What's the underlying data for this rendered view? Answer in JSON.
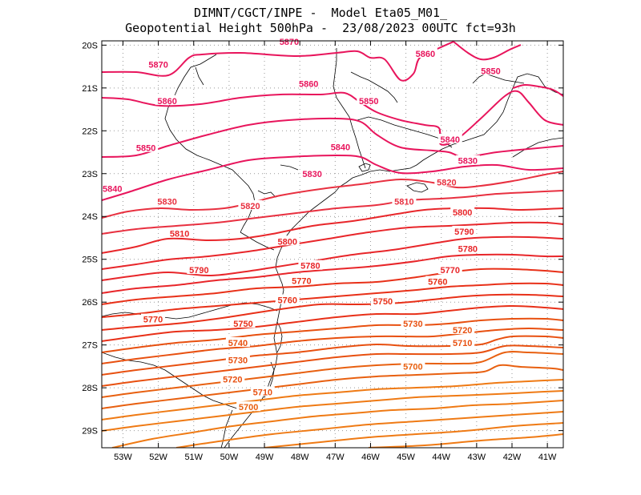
{
  "header": {
    "line1": "DIMNT/CGCT/INPE -  Model Eta05_M01_",
    "line2": "Geopotential Height 500hPa -  23/08/2023 00UTC fct=93h"
  },
  "map": {
    "lon_range": [
      -53.6,
      -40.55
    ],
    "lat_range": [
      -29.4,
      -19.9
    ],
    "lon_ticks": [
      -53,
      -52,
      -51,
      -50,
      -49,
      -48,
      -47,
      -46,
      -45,
      -44,
      -43,
      -42,
      -41
    ],
    "lon_tick_labels": [
      "53W",
      "52W",
      "51W",
      "50W",
      "49W",
      "48W",
      "47W",
      "46W",
      "45W",
      "44W",
      "43W",
      "42W",
      "41W"
    ],
    "lat_ticks": [
      -20,
      -21,
      -22,
      -23,
      -24,
      -25,
      -26,
      -27,
      -28,
      -29
    ],
    "lat_tick_labels": [
      "20S",
      "21S",
      "22S",
      "23S",
      "24S",
      "25S",
      "26S",
      "27S",
      "28S",
      "29S"
    ],
    "gridlines": true
  },
  "contour_labels": [
    {
      "text": "5870",
      "lon": -52.0,
      "lat": -20.45,
      "color": "#e8155c"
    },
    {
      "text": "5870",
      "lon": -48.3,
      "lat": -19.92,
      "color": "#e8155c"
    },
    {
      "text": "5860",
      "lon": -51.75,
      "lat": -21.3,
      "color": "#e8155c"
    },
    {
      "text": "5860",
      "lon": -47.75,
      "lat": -20.9,
      "color": "#e8155c"
    },
    {
      "text": "5860",
      "lon": -44.45,
      "lat": -20.2,
      "color": "#e8155c"
    },
    {
      "text": "5850",
      "lon": -52.35,
      "lat": -22.4,
      "color": "#e8155c"
    },
    {
      "text": "5850",
      "lon": -46.05,
      "lat": -21.3,
      "color": "#e8155c"
    },
    {
      "text": "5850",
      "lon": -42.6,
      "lat": -20.6,
      "color": "#e8155c"
    },
    {
      "text": "5840",
      "lon": -53.3,
      "lat": -23.35,
      "color": "#e8155c"
    },
    {
      "text": "5840",
      "lon": -46.85,
      "lat": -22.38,
      "color": "#e8155c"
    },
    {
      "text": "5840",
      "lon": -43.75,
      "lat": -22.2,
      "color": "#e8155c"
    },
    {
      "text": "5830",
      "lon": -51.75,
      "lat": -23.65,
      "color": "#e83040"
    },
    {
      "text": "5830",
      "lon": -47.65,
      "lat": -23.0,
      "color": "#e8155c"
    },
    {
      "text": "5830",
      "lon": -43.25,
      "lat": -22.7,
      "color": "#e8155c"
    },
    {
      "text": "5820",
      "lon": -49.4,
      "lat": -23.75,
      "color": "#e83040"
    },
    {
      "text": "5820",
      "lon": -43.85,
      "lat": -23.2,
      "color": "#e83040"
    },
    {
      "text": "5810",
      "lon": -51.4,
      "lat": -24.4,
      "color": "#e8262a"
    },
    {
      "text": "5810",
      "lon": -45.05,
      "lat": -23.65,
      "color": "#e83040"
    },
    {
      "text": "5800",
      "lon": -48.35,
      "lat": -24.58,
      "color": "#e8262a"
    },
    {
      "text": "5800",
      "lon": -43.4,
      "lat": -23.9,
      "color": "#e8262a"
    },
    {
      "text": "5790",
      "lon": -50.85,
      "lat": -25.25,
      "color": "#e8262a"
    },
    {
      "text": "5790",
      "lon": -43.35,
      "lat": -24.35,
      "color": "#e8262a"
    },
    {
      "text": "5780",
      "lon": -47.7,
      "lat": -25.15,
      "color": "#e8262a"
    },
    {
      "text": "5780",
      "lon": -43.25,
      "lat": -24.75,
      "color": "#e8262a"
    },
    {
      "text": "5770",
      "lon": -47.95,
      "lat": -25.5,
      "color": "#e83018"
    },
    {
      "text": "5770",
      "lon": -43.75,
      "lat": -25.25,
      "color": "#e8262a"
    },
    {
      "text": "5770",
      "lon": -52.15,
      "lat": -26.4,
      "color": "#e83018"
    },
    {
      "text": "5760",
      "lon": -48.35,
      "lat": -25.95,
      "color": "#e83018"
    },
    {
      "text": "5760",
      "lon": -44.1,
      "lat": -25.52,
      "color": "#e83018"
    },
    {
      "text": "5750",
      "lon": -49.6,
      "lat": -26.5,
      "color": "#e83018"
    },
    {
      "text": "5750",
      "lon": -45.65,
      "lat": -25.98,
      "color": "#e83018"
    },
    {
      "text": "5740",
      "lon": -49.75,
      "lat": -26.95,
      "color": "#e85010"
    },
    {
      "text": "5730",
      "lon": -49.75,
      "lat": -27.35,
      "color": "#e85010"
    },
    {
      "text": "5730",
      "lon": -44.8,
      "lat": -26.5,
      "color": "#e85010"
    },
    {
      "text": "5720",
      "lon": -49.9,
      "lat": -27.8,
      "color": "#e85010"
    },
    {
      "text": "5720",
      "lon": -43.4,
      "lat": -26.65,
      "color": "#e85010"
    },
    {
      "text": "5710",
      "lon": -49.05,
      "lat": -28.1,
      "color": "#e85010"
    },
    {
      "text": "5710",
      "lon": -43.4,
      "lat": -26.95,
      "color": "#e85010"
    },
    {
      "text": "5700",
      "lon": -49.45,
      "lat": -28.45,
      "color": "#e86010"
    },
    {
      "text": "5700",
      "lon": -44.8,
      "lat": -27.5,
      "color": "#e86010"
    }
  ],
  "colors": {
    "high": "#e8155c",
    "mid": "#e8262a",
    "low": "#e85010",
    "lowest": "#ef7a14",
    "coast": "#000000",
    "grid": "#999999"
  }
}
